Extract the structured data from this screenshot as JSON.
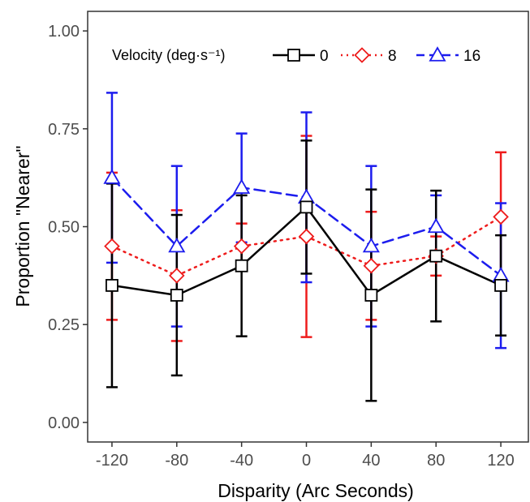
{
  "chart_data": {
    "type": "line",
    "xlabel": "Disparity (Arc Seconds)",
    "ylabel": "Proportion \"Nearer\"",
    "x": [
      -120,
      -80,
      -40,
      0,
      40,
      80,
      120
    ],
    "x_tick_labels": [
      "-120",
      "-80",
      "-40",
      "0",
      "40",
      "80",
      "120"
    ],
    "y_tick_labels": [
      "0.00",
      "0.25",
      "0.50",
      "0.75",
      "1.00"
    ],
    "y_ticks": [
      0,
      0.25,
      0.5,
      0.75,
      1.0
    ],
    "xlim": [
      -135,
      137
    ],
    "ylim": [
      -0.05,
      1.05
    ],
    "grid": false,
    "legend": {
      "title": "Velocity (deg·s⁻¹)",
      "position": "top-left",
      "entries": [
        "0",
        "8",
        "16"
      ]
    },
    "series": [
      {
        "name": "0",
        "color": "#000000",
        "dash": "solid",
        "marker": "square",
        "values": [
          0.35,
          0.325,
          0.4,
          0.55,
          0.325,
          0.425,
          0.35
        ],
        "err_low": [
          0.09,
          0.12,
          0.22,
          0.38,
          0.055,
          0.258,
          0.222
        ],
        "err_high": [
          0.61,
          0.53,
          0.58,
          0.72,
          0.595,
          0.592,
          0.478
        ]
      },
      {
        "name": "8",
        "color": "#ee1c1c",
        "dash": "dotted",
        "marker": "diamond",
        "values": [
          0.45,
          0.375,
          0.45,
          0.475,
          0.4,
          0.425,
          0.525
        ],
        "err_low": [
          0.262,
          0.208,
          0.39,
          0.218,
          0.262,
          0.375,
          0.36
        ],
        "err_high": [
          0.638,
          0.542,
          0.508,
          0.732,
          0.538,
          0.475,
          0.69
        ]
      },
      {
        "name": "16",
        "color": "#1c1cee",
        "dash": "dashed",
        "marker": "triangle",
        "values": [
          0.625,
          0.45,
          0.6,
          0.575,
          0.45,
          0.5,
          0.375
        ],
        "err_low": [
          0.408,
          0.245,
          0.46,
          0.358,
          0.245,
          0.42,
          0.19
        ],
        "err_high": [
          0.842,
          0.655,
          0.738,
          0.792,
          0.655,
          0.58,
          0.56
        ]
      }
    ]
  }
}
